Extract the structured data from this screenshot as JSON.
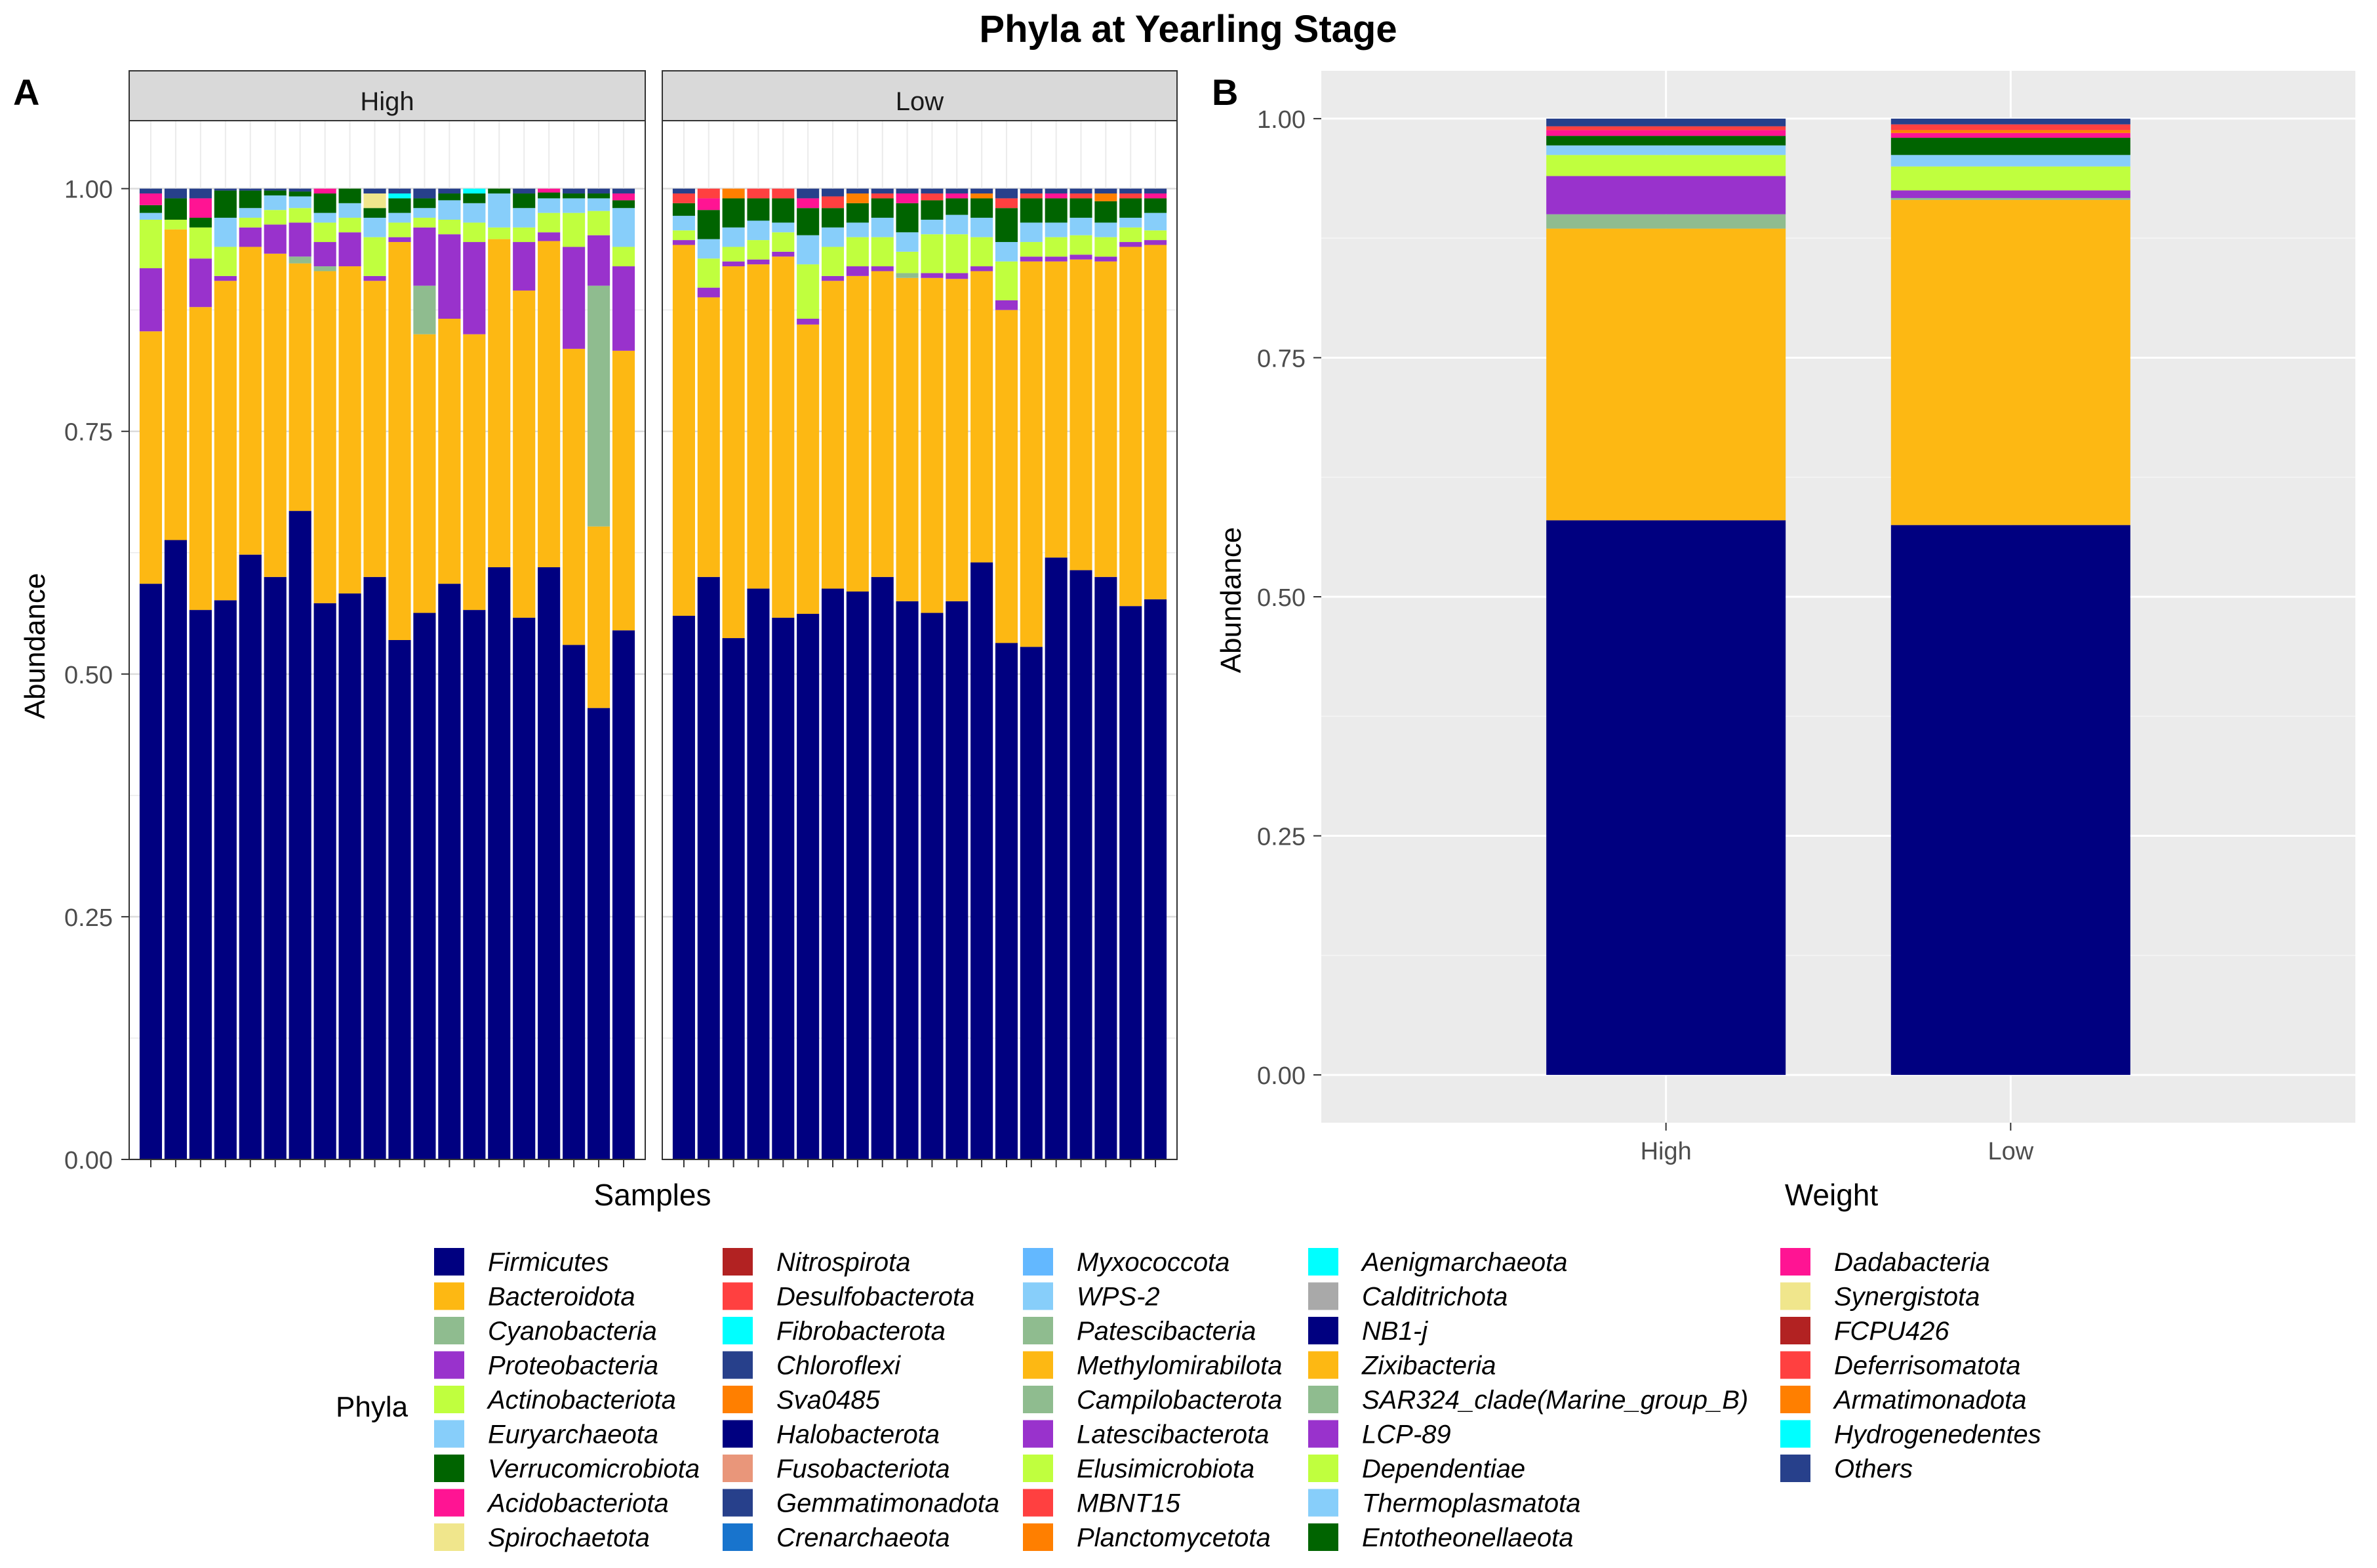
{
  "figure": {
    "title": "Phyla at Yearling Stage",
    "panel_a_label": "A",
    "panel_b_label": "B",
    "legend_title": "Phyla"
  },
  "colors": {
    "Firmicutes": "#000080",
    "Bacteroidota": "#FDB813",
    "Cyanobacteria": "#8FBC8F",
    "Proteobacteria": "#9932CC",
    "Actinobacteriota": "#C0FF3E",
    "Euryarchaeota": "#87CEFA",
    "Verrucomicrobiota": "#006400",
    "Acidobacteriota": "#FF1493",
    "Spirochaetota": "#F0E68C",
    "Nitrospirota": "#B22222",
    "Desulfobacterota": "#FF4040",
    "Fibrobacterota": "#00FFFF",
    "Chloroflexi": "#27408B",
    "Sva0485": "#FF7F00",
    "Halobacterota": "#000080",
    "Fusobacteriota": "#E9967A",
    "Gemmatimonadota": "#27408B",
    "Crenarchaeota": "#1874CD",
    "Myxococcota": "#63B8FF",
    "WPS-2": "#87CEFA",
    "Patescibacteria": "#8FBC8F",
    "Methylomirabilota": "#FDB813",
    "Campilobacterota": "#8FBC8F",
    "Latescibacterota": "#9932CC",
    "Elusimicrobiota": "#C0FF3E",
    "MBNT15": "#FF4040",
    "Planctomycetota": "#FF7F00",
    "Aenigmarchaeota": "#00FFFF",
    "Calditrichota": "#A9A9A9",
    "NB1-j": "#000080",
    "Zixibacteria": "#FDB813",
    "SAR324_clade(Marine_group_B)": "#8FBC8F",
    "LCP-89": "#9932CC",
    "Dependentiae": "#C0FF3E",
    "Thermoplasmatota": "#87CEFA",
    "Entotheonellaeota": "#006400",
    "Dadabacteria": "#FF1493",
    "Synergistota": "#F0E68C",
    "FCPU426": "#B22222",
    "Deferrisomatota": "#FF4040",
    "Armatimonadota": "#FF7F00",
    "Hydrogenedentes": "#00FFFF",
    "Others": "#27408B"
  },
  "chart_data": [
    {
      "type": "bar",
      "panel": "A",
      "stacked": true,
      "xlabel": "Samples",
      "ylabel": "Abundance",
      "ylim": [
        0,
        1.07
      ],
      "yticks": [
        0,
        0.25,
        0.5,
        0.75,
        1.0
      ],
      "ytick_labels": [
        "0.00",
        "0.25",
        "0.50",
        "0.75",
        "1.00"
      ],
      "facets": [
        {
          "name": "High",
          "samples": [
            {
              "Firmicutes": 0.593,
              "Bacteroidota": 0.26,
              "Proteobacteria": 0.065,
              "Actinobacteriota": 0.05,
              "Acidobacteriota": 0.012,
              "Verrucomicrobiota": 0.008,
              "Euryarchaeota": 0.007,
              "Others": 0.005
            },
            {
              "Firmicutes": 0.638,
              "Bacteroidota": 0.32,
              "Actinobacteriota": 0.01,
              "Verrucomicrobiota": 0.022,
              "Others": 0.01
            },
            {
              "Firmicutes": 0.566,
              "Bacteroidota": 0.312,
              "Proteobacteria": 0.05,
              "Actinobacteriota": 0.032,
              "Acidobacteriota": 0.02,
              "Verrucomicrobiota": 0.01,
              "Others": 0.01
            },
            {
              "Firmicutes": 0.576,
              "Bacteroidota": 0.329,
              "Proteobacteria": 0.005,
              "Actinobacteriota": 0.03,
              "Euryarchaeota": 0.03,
              "Verrucomicrobiota": 0.028,
              "Others": 0.002
            },
            {
              "Firmicutes": 0.623,
              "Bacteroidota": 0.317,
              "Proteobacteria": 0.02,
              "Actinobacteriota": 0.01,
              "Euryarchaeota": 0.01,
              "Verrucomicrobiota": 0.018,
              "Others": 0.002
            },
            {
              "Firmicutes": 0.6,
              "Bacteroidota": 0.333,
              "Proteobacteria": 0.03,
              "Actinobacteriota": 0.015,
              "Euryarchaeota": 0.015,
              "Verrucomicrobiota": 0.005,
              "Others": 0.002
            },
            {
              "Firmicutes": 0.668,
              "Bacteroidota": 0.255,
              "Cyanobacteria": 0.007,
              "Proteobacteria": 0.035,
              "Actinobacteriota": 0.015,
              "Euryarchaeota": 0.012,
              "Verrucomicrobiota": 0.005,
              "Others": 0.003
            },
            {
              "Firmicutes": 0.573,
              "Bacteroidota": 0.342,
              "Cyanobacteria": 0.005,
              "Proteobacteria": 0.025,
              "Actinobacteriota": 0.02,
              "Verrucomicrobiota": 0.02,
              "Euryarchaeota": 0.01,
              "Acidobacteriota": 0.005
            },
            {
              "Firmicutes": 0.583,
              "Bacteroidota": 0.337,
              "Proteobacteria": 0.035,
              "Actinobacteriota": 0.015,
              "Euryarchaeota": 0.015,
              "Verrucomicrobiota": 0.015
            },
            {
              "Firmicutes": 0.6,
              "Bacteroidota": 0.305,
              "Proteobacteria": 0.005,
              "Actinobacteriota": 0.04,
              "Euryarchaeota": 0.02,
              "Verrucomicrobiota": 0.01,
              "Spirochaetota": 0.015,
              "Others": 0.005
            },
            {
              "Firmicutes": 0.535,
              "Bacteroidota": 0.41,
              "Proteobacteria": 0.005,
              "Actinobacteriota": 0.015,
              "Euryarchaeota": 0.01,
              "Verrucomicrobiota": 0.015,
              "Fibrobacterota": 0.005,
              "Others": 0.005
            },
            {
              "Firmicutes": 0.563,
              "Bacteroidota": 0.287,
              "Cyanobacteria": 0.05,
              "Proteobacteria": 0.06,
              "Actinobacteriota": 0.01,
              "Euryarchaeota": 0.01,
              "Verrucomicrobiota": 0.01,
              "Others": 0.01
            },
            {
              "Firmicutes": 0.593,
              "Bacteroidota": 0.273,
              "Proteobacteria": 0.087,
              "Actinobacteriota": 0.015,
              "Euryarchaeota": 0.02,
              "Verrucomicrobiota": 0.007,
              "Others": 0.005
            },
            {
              "Firmicutes": 0.566,
              "Bacteroidota": 0.284,
              "Proteobacteria": 0.095,
              "Actinobacteriota": 0.02,
              "Euryarchaeota": 0.02,
              "Verrucomicrobiota": 0.01,
              "Fibrobacterota": 0.005
            },
            {
              "Firmicutes": 0.61,
              "Bacteroidota": 0.338,
              "Actinobacteriota": 0.012,
              "Euryarchaeota": 0.035,
              "Verrucomicrobiota": 0.005
            },
            {
              "Firmicutes": 0.558,
              "Bacteroidota": 0.337,
              "Proteobacteria": 0.05,
              "Actinobacteriota": 0.015,
              "Euryarchaeota": 0.02,
              "Verrucomicrobiota": 0.015,
              "Others": 0.005
            },
            {
              "Firmicutes": 0.61,
              "Bacteroidota": 0.336,
              "Proteobacteria": 0.009,
              "Actinobacteriota": 0.02,
              "Euryarchaeota": 0.015,
              "Verrucomicrobiota": 0.006,
              "Acidobacteriota": 0.004
            },
            {
              "Firmicutes": 0.53,
              "Bacteroidota": 0.305,
              "Proteobacteria": 0.105,
              "Actinobacteriota": 0.035,
              "Euryarchaeota": 0.015,
              "Verrucomicrobiota": 0.005,
              "Others": 0.005
            },
            {
              "Firmicutes": 0.465,
              "Bacteroidota": 0.187,
              "Cyanobacteria": 0.248,
              "Proteobacteria": 0.052,
              "Actinobacteriota": 0.025,
              "Euryarchaeota": 0.013,
              "Verrucomicrobiota": 0.005,
              "Others": 0.005
            },
            {
              "Firmicutes": 0.545,
              "Bacteroidota": 0.288,
              "Proteobacteria": 0.087,
              "Actinobacteriota": 0.02,
              "Euryarchaeota": 0.04,
              "Verrucomicrobiota": 0.008,
              "Acidobacteriota": 0.007,
              "Others": 0.005
            }
          ]
        },
        {
          "name": "Low",
          "samples": [
            {
              "Firmicutes": 0.56,
              "Bacteroidota": 0.382,
              "Proteobacteria": 0.005,
              "Actinobacteriota": 0.01,
              "Euryarchaeota": 0.015,
              "Verrucomicrobiota": 0.013,
              "Desulfobacterota": 0.01,
              "Others": 0.005
            },
            {
              "Firmicutes": 0.6,
              "Bacteroidota": 0.288,
              "Proteobacteria": 0.01,
              "Actinobacteriota": 0.03,
              "Euryarchaeota": 0.02,
              "Verrucomicrobiota": 0.03,
              "Acidobacteriota": 0.012,
              "Desulfobacterota": 0.01
            },
            {
              "Firmicutes": 0.537,
              "Bacteroidota": 0.383,
              "Proteobacteria": 0.005,
              "Actinobacteriota": 0.015,
              "Euryarchaeota": 0.02,
              "Verrucomicrobiota": 0.03,
              "Sva0485": 0.01
            },
            {
              "Firmicutes": 0.588,
              "Bacteroidota": 0.334,
              "Proteobacteria": 0.005,
              "Actinobacteriota": 0.02,
              "Euryarchaeota": 0.02,
              "Verrucomicrobiota": 0.023,
              "Desulfobacterota": 0.01
            },
            {
              "Firmicutes": 0.558,
              "Bacteroidota": 0.372,
              "Proteobacteria": 0.005,
              "Actinobacteriota": 0.02,
              "Euryarchaeota": 0.01,
              "Verrucomicrobiota": 0.025,
              "Desulfobacterota": 0.01
            },
            {
              "Firmicutes": 0.562,
              "Bacteroidota": 0.298,
              "Proteobacteria": 0.006,
              "Actinobacteriota": 0.056,
              "Euryarchaeota": 0.03,
              "Verrucomicrobiota": 0.028,
              "Acidobacteriota": 0.01,
              "Others": 0.01
            },
            {
              "Firmicutes": 0.588,
              "Bacteroidota": 0.317,
              "Proteobacteria": 0.005,
              "Actinobacteriota": 0.03,
              "Euryarchaeota": 0.02,
              "Verrucomicrobiota": 0.02,
              "Desulfobacterota": 0.012,
              "Others": 0.008
            },
            {
              "Firmicutes": 0.585,
              "Bacteroidota": 0.325,
              "Proteobacteria": 0.01,
              "Actinobacteriota": 0.03,
              "Euryarchaeota": 0.015,
              "Verrucomicrobiota": 0.02,
              "Sva0485": 0.01,
              "Others": 0.005
            },
            {
              "Firmicutes": 0.6,
              "Bacteroidota": 0.315,
              "Proteobacteria": 0.005,
              "Actinobacteriota": 0.03,
              "Euryarchaeota": 0.02,
              "Verrucomicrobiota": 0.02,
              "Desulfobacterota": 0.005,
              "Others": 0.005
            },
            {
              "Firmicutes": 0.575,
              "Bacteroidota": 0.333,
              "Cyanobacteria": 0.005,
              "Actinobacteriota": 0.022,
              "Euryarchaeota": 0.02,
              "Verrucomicrobiota": 0.03,
              "Acidobacteriota": 0.01,
              "Others": 0.005
            },
            {
              "Firmicutes": 0.563,
              "Bacteroidota": 0.345,
              "Proteobacteria": 0.005,
              "Actinobacteriota": 0.04,
              "Euryarchaeota": 0.015,
              "Verrucomicrobiota": 0.02,
              "Desulfobacterota": 0.007,
              "Others": 0.005
            },
            {
              "Firmicutes": 0.575,
              "Bacteroidota": 0.332,
              "Proteobacteria": 0.006,
              "Actinobacteriota": 0.04,
              "Euryarchaeota": 0.02,
              "Verrucomicrobiota": 0.017,
              "Acidobacteriota": 0.005,
              "Others": 0.005
            },
            {
              "Firmicutes": 0.615,
              "Bacteroidota": 0.3,
              "Proteobacteria": 0.005,
              "Actinobacteriota": 0.03,
              "Euryarchaeota": 0.02,
              "Verrucomicrobiota": 0.02,
              "Sva0485": 0.005,
              "Others": 0.005
            },
            {
              "Firmicutes": 0.532,
              "Bacteroidota": 0.343,
              "Proteobacteria": 0.01,
              "Actinobacteriota": 0.04,
              "Euryarchaeota": 0.02,
              "Verrucomicrobiota": 0.035,
              "Desulfobacterota": 0.01,
              "Others": 0.01
            },
            {
              "Firmicutes": 0.528,
              "Bacteroidota": 0.397,
              "Proteobacteria": 0.005,
              "Actinobacteriota": 0.015,
              "Euryarchaeota": 0.02,
              "Verrucomicrobiota": 0.025,
              "Desulfobacterota": 0.005,
              "Others": 0.005
            },
            {
              "Firmicutes": 0.62,
              "Bacteroidota": 0.305,
              "Proteobacteria": 0.005,
              "Actinobacteriota": 0.02,
              "Euryarchaeota": 0.015,
              "Verrucomicrobiota": 0.025,
              "Acidobacteriota": 0.005,
              "Others": 0.005
            },
            {
              "Firmicutes": 0.607,
              "Bacteroidota": 0.32,
              "Proteobacteria": 0.005,
              "Actinobacteriota": 0.02,
              "Euryarchaeota": 0.018,
              "Verrucomicrobiota": 0.02,
              "Desulfobacterota": 0.005,
              "Others": 0.005
            },
            {
              "Firmicutes": 0.6,
              "Bacteroidota": 0.325,
              "Proteobacteria": 0.005,
              "Actinobacteriota": 0.02,
              "Euryarchaeota": 0.015,
              "Verrucomicrobiota": 0.022,
              "Sva0485": 0.008,
              "Others": 0.005
            },
            {
              "Firmicutes": 0.57,
              "Bacteroidota": 0.37,
              "Proteobacteria": 0.005,
              "Actinobacteriota": 0.015,
              "Euryarchaeota": 0.01,
              "Verrucomicrobiota": 0.02,
              "Desulfobacterota": 0.005,
              "Others": 0.005
            },
            {
              "Firmicutes": 0.577,
              "Bacteroidota": 0.365,
              "Proteobacteria": 0.005,
              "Actinobacteriota": 0.01,
              "Euryarchaeota": 0.018,
              "Verrucomicrobiota": 0.015,
              "Acidobacteriota": 0.005,
              "Others": 0.005
            }
          ]
        }
      ]
    },
    {
      "type": "bar",
      "panel": "B",
      "stacked": true,
      "xlabel": "Weight",
      "ylabel": "Abundance",
      "categories": [
        "High",
        "Low"
      ],
      "ylim": [
        -0.05,
        1.05
      ],
      "yticks": [
        0,
        0.25,
        0.5,
        0.75,
        1.0
      ],
      "ytick_labels": [
        "0.00",
        "0.25",
        "0.50",
        "0.75",
        "1.00"
      ],
      "stacks": [
        {
          "Firmicutes": 0.58,
          "Bacteroidota": 0.305,
          "Cyanobacteria": 0.015,
          "Proteobacteria": 0.04,
          "Actinobacteriota": 0.022,
          "Euryarchaeota": 0.01,
          "Verrucomicrobiota": 0.01,
          "Acidobacteriota": 0.006,
          "Desulfobacterota": 0.004,
          "Others": 0.008
        },
        {
          "Firmicutes": 0.575,
          "Bacteroidota": 0.34,
          "Cyanobacteria": 0.002,
          "Proteobacteria": 0.008,
          "Actinobacteriota": 0.025,
          "Euryarchaeota": 0.012,
          "Verrucomicrobiota": 0.018,
          "Acidobacteriota": 0.005,
          "Desulfobacterota": 0.006,
          "Sva0485": 0.003,
          "Others": 0.006
        }
      ]
    }
  ],
  "legend": {
    "title": "Phyla",
    "columns": [
      [
        "Firmicutes",
        "Bacteroidota",
        "Cyanobacteria",
        "Proteobacteria",
        "Actinobacteriota",
        "Euryarchaeota",
        "Verrucomicrobiota",
        "Acidobacteriota",
        "Spirochaetota"
      ],
      [
        "Nitrospirota",
        "Desulfobacterota",
        "Fibrobacterota",
        "Chloroflexi",
        "Sva0485",
        "Halobacterota",
        "Fusobacteriota",
        "Gemmatimonadota",
        "Crenarchaeota"
      ],
      [
        "Myxococcota",
        "WPS-2",
        "Patescibacteria",
        "Methylomirabilota",
        "Campilobacterota",
        "Latescibacterota",
        "Elusimicrobiota",
        "MBNT15",
        "Planctomycetota"
      ],
      [
        "Aenigmarchaeota",
        "Calditrichota",
        "NB1-j",
        "Zixibacteria",
        "SAR324_clade(Marine_group_B)",
        "LCP-89",
        "Dependentiae",
        "Thermoplasmatota",
        "Entotheonellaeota"
      ],
      [
        "Dadabacteria",
        "Synergistota",
        "FCPU426",
        "Deferrisomatota",
        "Armatimonadota",
        "Hydrogenedentes",
        "Others"
      ]
    ]
  }
}
